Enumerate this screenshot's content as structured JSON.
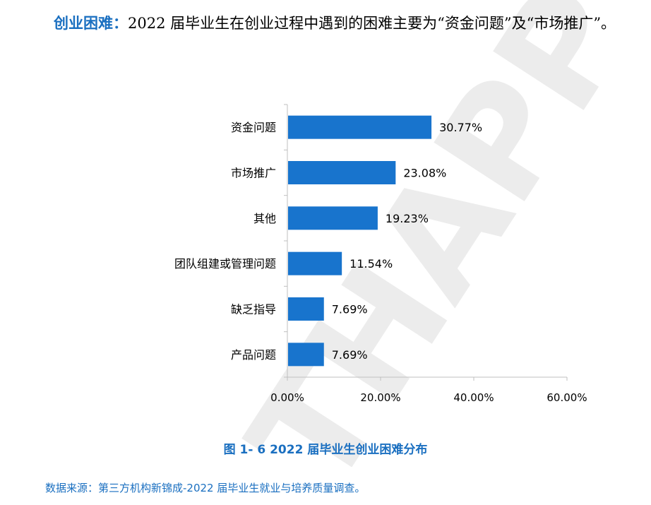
{
  "intro": {
    "lead": "创业困难：",
    "text": "2022 届毕业生在创业过程中遇到的困难主要为“资金问题”及“市场推广”。"
  },
  "watermark_text": "THAPP",
  "caption": "图 1- 6  2022 届毕业生创业困难分布",
  "source": "数据来源：第三方机构新锦成-2022 届毕业生就业与培养质量调查。",
  "chart_data": {
    "type": "bar",
    "orientation": "horizontal",
    "categories": [
      "资金问题",
      "市场推广",
      "其他",
      "团队组建或管理问题",
      "缺乏指导",
      "产品问题"
    ],
    "values": [
      30.77,
      23.08,
      19.23,
      11.54,
      7.69,
      7.69
    ],
    "value_labels": [
      "30.77%",
      "23.08%",
      "19.23%",
      "11.54%",
      "7.69%",
      "7.69%"
    ],
    "xlim": [
      0,
      60
    ],
    "xticks": [
      0,
      20,
      40,
      60
    ],
    "xtick_labels": [
      "0.00%",
      "20.00%",
      "40.00%",
      "60.00%"
    ],
    "grid": false,
    "bar_color": "#1874cd"
  },
  "colors": {
    "accent": "#1a6fc0",
    "bar": "#1874cd",
    "watermark": "#ececec"
  }
}
